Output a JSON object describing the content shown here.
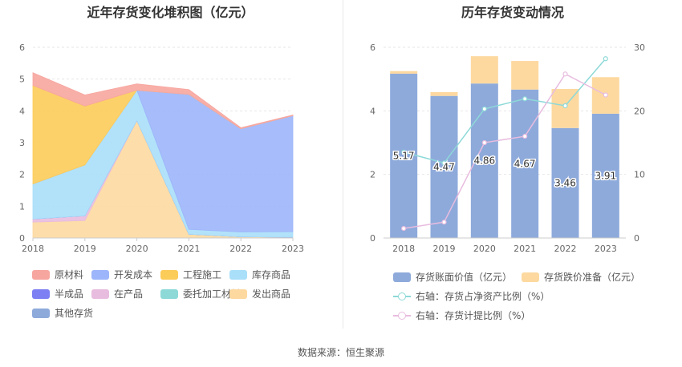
{
  "left": {
    "title": "近年存货变化堆积图（亿元）",
    "chart_data": {
      "type": "area",
      "stacked": true,
      "x": [
        "2018",
        "2019",
        "2020",
        "2021",
        "2022",
        "2023"
      ],
      "ylim": [
        0,
        6
      ],
      "yticks": [
        "0",
        "1",
        "2",
        "3",
        "4",
        "5",
        "6"
      ],
      "grid": true,
      "legend_position": "bottom",
      "series": [
        {
          "name": "发出商品",
          "color": "#FDD9A0",
          "values": [
            0.5,
            0.55,
            3.7,
            0.12,
            0.04,
            0.03
          ]
        },
        {
          "name": "在产品",
          "color": "#E8BCDF",
          "values": [
            0.1,
            0.15,
            0.0,
            0.0,
            0.0,
            0.0
          ]
        },
        {
          "name": "其他存货",
          "color": "#8EAADB",
          "values": [
            0.0,
            0.0,
            0.0,
            0.0,
            0.0,
            0.0
          ]
        },
        {
          "name": "委托加工材料",
          "color": "#8DD9D8",
          "values": [
            0.0,
            0.0,
            0.0,
            0.0,
            0.0,
            0.0
          ]
        },
        {
          "name": "半成品",
          "color": "#7C80F2",
          "values": [
            0.0,
            0.0,
            0.0,
            0.0,
            0.0,
            0.0
          ]
        },
        {
          "name": "库存商品",
          "color": "#AADFF9",
          "values": [
            1.1,
            1.6,
            0.95,
            0.15,
            0.15,
            0.17
          ]
        },
        {
          "name": "开发成本",
          "color": "#9DB5FA",
          "values": [
            0.0,
            0.0,
            0.0,
            4.25,
            3.25,
            3.65
          ]
        },
        {
          "name": "工程施工",
          "color": "#FCCC59",
          "values": [
            3.1,
            1.85,
            0.0,
            0.0,
            0.0,
            0.0
          ]
        },
        {
          "name": "原材料",
          "color": "#F7A69F",
          "values": [
            0.4,
            0.35,
            0.2,
            0.15,
            0.03,
            0.02
          ]
        }
      ]
    },
    "legend": [
      {
        "label": "原材料",
        "color": "#F7A69F"
      },
      {
        "label": "开发成本",
        "color": "#9DB5FA"
      },
      {
        "label": "工程施工",
        "color": "#FCCC59"
      },
      {
        "label": "库存商品",
        "color": "#AADFF9"
      },
      {
        "label": "半成品",
        "color": "#7C80F2"
      },
      {
        "label": "在产品",
        "color": "#E8BCDF"
      },
      {
        "label": "委托加工材料",
        "color": "#8DD9D8"
      },
      {
        "label": "发出商品",
        "color": "#FDD9A0"
      },
      {
        "label": "其他存货",
        "color": "#8EAADB"
      }
    ]
  },
  "right": {
    "title": "历年存货变动情况",
    "chart_data": {
      "type": "bar",
      "categories": [
        "2018",
        "2019",
        "2020",
        "2021",
        "2022",
        "2023"
      ],
      "ylim_left": [
        0,
        6
      ],
      "yticks_left": [
        "0",
        "2",
        "4",
        "6"
      ],
      "ylim_right": [
        0,
        30
      ],
      "yticks_right": [
        "0",
        "10",
        "20",
        "30"
      ],
      "series": [
        {
          "name": "存货账面价值（亿元）",
          "type": "bar",
          "axis": "left",
          "color": "#8EAADB",
          "values": [
            5.17,
            4.47,
            4.86,
            4.67,
            3.46,
            3.91
          ],
          "labels": [
            "5.17",
            "4.47",
            "4.86",
            "4.67",
            "3.46",
            "3.91"
          ]
        },
        {
          "name": "存货跌价准备（亿元）",
          "type": "bar",
          "axis": "left",
          "color": "#FDD9A0",
          "values": [
            0.08,
            0.12,
            0.86,
            0.9,
            1.23,
            1.15
          ]
        },
        {
          "name": "右轴：存货占净资产比例（%）",
          "type": "line",
          "axis": "right",
          "color": "#8DD9D8",
          "values": [
            13.5,
            11.8,
            20.3,
            21.9,
            20.8,
            28.2
          ]
        },
        {
          "name": "右轴：存货计提比例（%）",
          "type": "line",
          "axis": "right",
          "color": "#E8BCDF",
          "values": [
            1.5,
            2.5,
            15.0,
            16.0,
            25.8,
            22.5
          ]
        }
      ]
    },
    "legend": [
      {
        "label": "存货账面价值（亿元）",
        "color": "#8EAADB",
        "kind": "box"
      },
      {
        "label": "存货跌价准备（亿元）",
        "color": "#FDD9A0",
        "kind": "box"
      },
      {
        "label": "右轴：存货占净资产比例（%）",
        "color": "#8DD9D8",
        "kind": "line"
      },
      {
        "label": "右轴：存货计提比例（%）",
        "color": "#E8BCDF",
        "kind": "line"
      }
    ]
  },
  "source": "数据来源：恒生聚源"
}
